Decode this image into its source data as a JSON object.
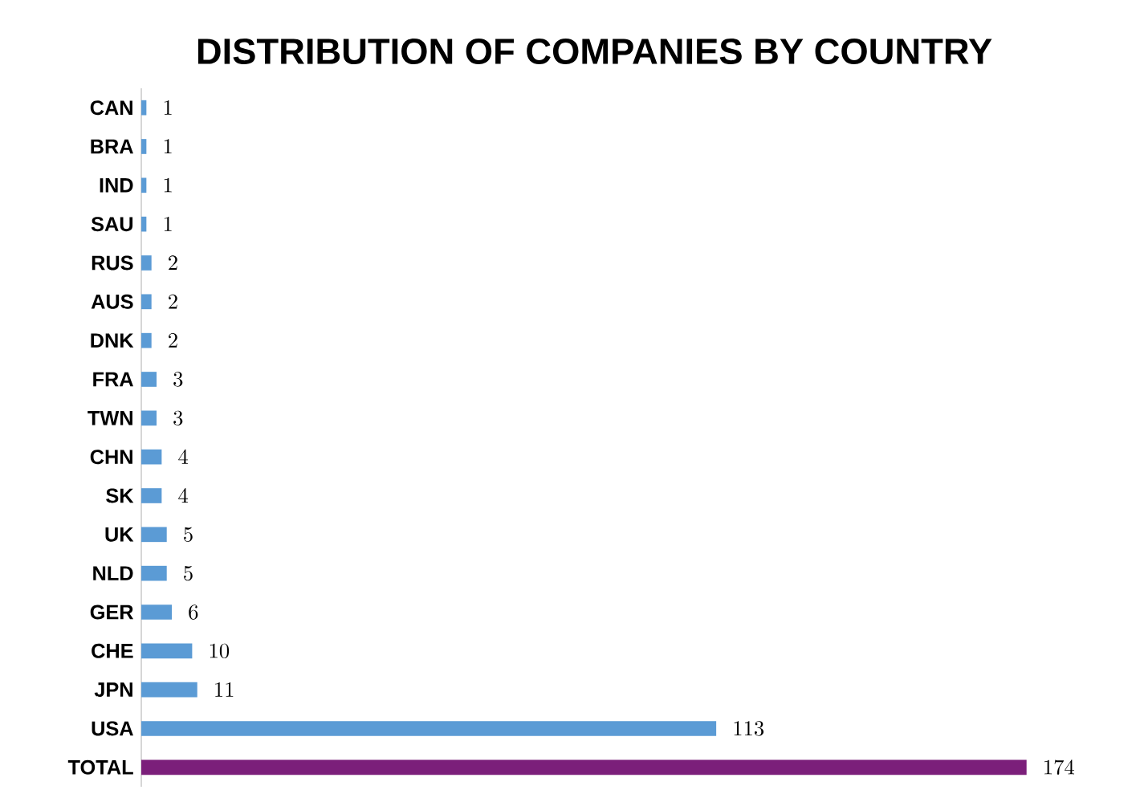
{
  "chart_data": {
    "type": "bar",
    "orientation": "horizontal",
    "title": "DISTRIBUTION OF COMPANIES BY COUNTRY",
    "categories": [
      "CAN",
      "BRA",
      "IND",
      "SAU",
      "RUS",
      "AUS",
      "DNK",
      "FRA",
      "TWN",
      "CHN",
      "SK",
      "UK",
      "NLD",
      "GER",
      "CHE",
      "JPN",
      "USA",
      "TOTAL"
    ],
    "values": [
      1,
      1,
      1,
      1,
      2,
      2,
      2,
      3,
      3,
      4,
      4,
      5,
      5,
      6,
      10,
      11,
      113,
      174
    ],
    "colors": [
      "#5b9bd5",
      "#5b9bd5",
      "#5b9bd5",
      "#5b9bd5",
      "#5b9bd5",
      "#5b9bd5",
      "#5b9bd5",
      "#5b9bd5",
      "#5b9bd5",
      "#5b9bd5",
      "#5b9bd5",
      "#5b9bd5",
      "#5b9bd5",
      "#5b9bd5",
      "#5b9bd5",
      "#5b9bd5",
      "#5b9bd5",
      "#7b1f7a"
    ],
    "data_labels": true
  }
}
